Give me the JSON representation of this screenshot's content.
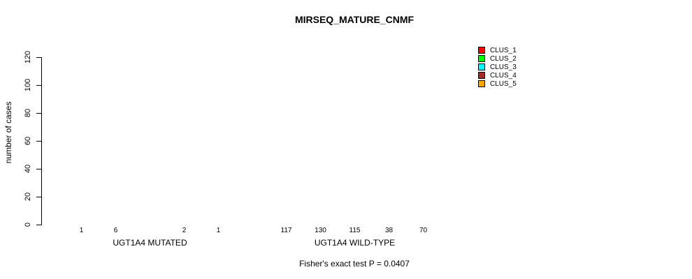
{
  "chart_data": {
    "type": "bar",
    "title": "MIRSEQ_MATURE_CNMF",
    "ylabel": "number of cases",
    "xlabel": "",
    "ylim": [
      0,
      130
    ],
    "yticks": [
      0,
      20,
      40,
      60,
      80,
      100,
      120
    ],
    "grid": false,
    "legend_position": "top-right",
    "legend": [
      {
        "name": "CLUS_1",
        "color": "#ff0000"
      },
      {
        "name": "CLUS_2",
        "color": "#00ff00"
      },
      {
        "name": "CLUS_3",
        "color": "#00ffff"
      },
      {
        "name": "CLUS_4",
        "color": "#a52a2a"
      },
      {
        "name": "CLUS_5",
        "color": "#ffa500"
      }
    ],
    "groups": [
      {
        "label": "UGT1A4 MUTATED",
        "values": [
          1,
          6,
          0,
          2,
          1
        ],
        "bar_labels": [
          "1",
          "6",
          "",
          "2",
          "1"
        ]
      },
      {
        "label": "UGT1A4 WILD-TYPE",
        "values": [
          117,
          130,
          115,
          38,
          70
        ],
        "bar_labels": [
          "117",
          "130",
          "115",
          "38",
          "70"
        ]
      }
    ],
    "annotation": "Fisher's exact test P = 0.0407"
  }
}
